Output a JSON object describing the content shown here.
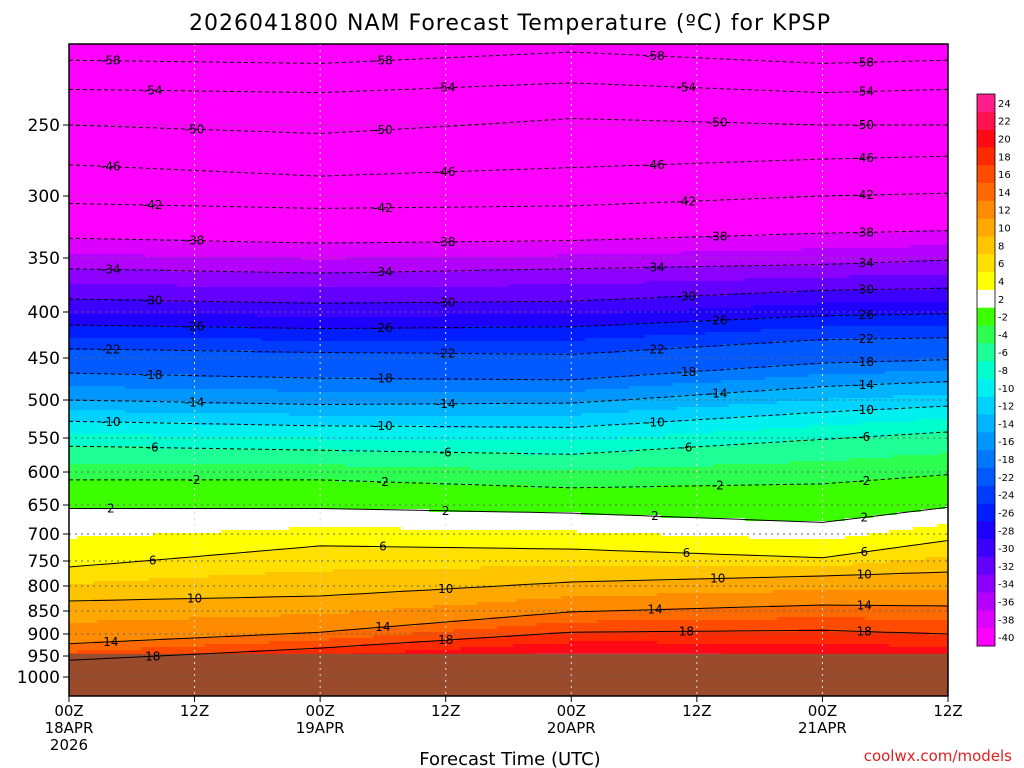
{
  "chart_data": {
    "type": "heatmap",
    "title": "2026041800 NAM Forecast Temperature (ºC) for KPSP",
    "xlabel": "Forecast Time (UTC)",
    "ylabel": "",
    "credit": "coolwx.com/models",
    "x_axis": {
      "range_hours": [
        0,
        84
      ],
      "ticks": [
        {
          "hour": 0,
          "lines": [
            "00Z",
            "18APR",
            "2026"
          ]
        },
        {
          "hour": 12,
          "lines": [
            "12Z"
          ]
        },
        {
          "hour": 24,
          "lines": [
            "00Z",
            "19APR"
          ]
        },
        {
          "hour": 36,
          "lines": [
            "12Z"
          ]
        },
        {
          "hour": 48,
          "lines": [
            "00Z",
            "20APR"
          ]
        },
        {
          "hour": 60,
          "lines": [
            "12Z"
          ]
        },
        {
          "hour": 72,
          "lines": [
            "00Z",
            "21APR"
          ]
        },
        {
          "hour": 84,
          "lines": [
            "12Z"
          ]
        }
      ]
    },
    "y_axis": {
      "units": "hPa",
      "scale": "log",
      "range": [
        1050,
        200
      ],
      "ticks": [
        250,
        300,
        350,
        400,
        450,
        500,
        550,
        600,
        650,
        700,
        750,
        800,
        850,
        900,
        950,
        1000
      ]
    },
    "ground_level_hpa": 945,
    "grid": "dotted",
    "colorbar": {
      "placement": "right",
      "labels": [
        "24",
        "22",
        "20",
        "18",
        "16",
        "14",
        "12",
        "10",
        "8",
        "6",
        "4",
        "2",
        "-2",
        "-4",
        "-6",
        "-8",
        "-10",
        "-12",
        "-14",
        "-16",
        "-18",
        "-22",
        "-24",
        "-26",
        "-28",
        "-30",
        "-32",
        "-34",
        "-36",
        "-38",
        "-40"
      ],
      "colors": [
        "#ff1e8c",
        "#ff1450",
        "#ff0a14",
        "#ff2a00",
        "#ff4c00",
        "#ff6a00",
        "#ff8c00",
        "#ffa800",
        "#ffc400",
        "#ffe000",
        "#ffff00",
        "#ffffff",
        "#3cff00",
        "#2cff50",
        "#1eff96",
        "#00ffcc",
        "#00f0f0",
        "#00d2ff",
        "#00b4ff",
        "#0096ff",
        "#0078ff",
        "#005aff",
        "#003cff",
        "#001eff",
        "#1e00ff",
        "#3c00ff",
        "#6400ff",
        "#8c00ff",
        "#b400ff",
        "#dc00ff",
        "#ff00ff"
      ]
    },
    "color_levels_c": [
      -40,
      -38,
      -36,
      -34,
      -32,
      -30,
      -28,
      -26,
      -24,
      -22,
      -18,
      -16,
      -14,
      -12,
      -10,
      -8,
      -6,
      -4,
      -2,
      2,
      4,
      6,
      8,
      10,
      12,
      14,
      16,
      18,
      20,
      22,
      24
    ],
    "contour_labels": [
      "-58",
      "-54",
      "-50",
      "-46",
      "-42",
      "-38",
      "-34",
      "-30",
      "-26",
      "-22",
      "-18",
      "-14",
      "-10",
      "-6",
      "-2",
      "2",
      "6",
      "10",
      "14",
      "18"
    ],
    "contours": [
      {
        "temp_c": -58,
        "hours": [
          0,
          24,
          48,
          72,
          84
        ],
        "p_hpa": [
          210,
          212,
          205,
          212,
          210
        ]
      },
      {
        "temp_c": -54,
        "hours": [
          0,
          24,
          48,
          72,
          84
        ],
        "p_hpa": [
          228,
          230,
          224,
          230,
          228
        ]
      },
      {
        "temp_c": -50,
        "hours": [
          0,
          24,
          48,
          72,
          84
        ],
        "p_hpa": [
          250,
          256,
          246,
          250,
          250
        ]
      },
      {
        "temp_c": -46,
        "hours": [
          0,
          24,
          48,
          72,
          84
        ],
        "p_hpa": [
          278,
          286,
          280,
          274,
          272
        ]
      },
      {
        "temp_c": -42,
        "hours": [
          0,
          24,
          48,
          72,
          84
        ],
        "p_hpa": [
          306,
          310,
          308,
          300,
          298
        ]
      },
      {
        "temp_c": -38,
        "hours": [
          0,
          24,
          48,
          72,
          84
        ],
        "p_hpa": [
          334,
          338,
          336,
          330,
          328
        ]
      },
      {
        "temp_c": -34,
        "hours": [
          0,
          24,
          48,
          72,
          84
        ],
        "p_hpa": [
          360,
          364,
          360,
          356,
          352
        ]
      },
      {
        "temp_c": -30,
        "hours": [
          0,
          24,
          48,
          72,
          84
        ],
        "p_hpa": [
          388,
          392,
          390,
          380,
          378
        ]
      },
      {
        "temp_c": -26,
        "hours": [
          0,
          24,
          48,
          72,
          84
        ],
        "p_hpa": [
          414,
          418,
          416,
          404,
          402
        ]
      },
      {
        "temp_c": -22,
        "hours": [
          0,
          24,
          48,
          72,
          84
        ],
        "p_hpa": [
          440,
          444,
          446,
          430,
          428
        ]
      },
      {
        "temp_c": -18,
        "hours": [
          0,
          24,
          48,
          72,
          84
        ],
        "p_hpa": [
          468,
          474,
          476,
          456,
          452
        ]
      },
      {
        "temp_c": -14,
        "hours": [
          0,
          24,
          48,
          72,
          84
        ],
        "p_hpa": [
          500,
          506,
          504,
          484,
          478
        ]
      },
      {
        "temp_c": -10,
        "hours": [
          0,
          24,
          48,
          72,
          84
        ],
        "p_hpa": [
          528,
          534,
          536,
          516,
          508
        ]
      },
      {
        "temp_c": -6,
        "hours": [
          0,
          24,
          48,
          72,
          84
        ],
        "p_hpa": [
          562,
          568,
          574,
          552,
          542
        ]
      },
      {
        "temp_c": -2,
        "hours": [
          0,
          24,
          48,
          72,
          84
        ],
        "p_hpa": [
          612,
          612,
          624,
          618,
          604
        ]
      },
      {
        "temp_c": 2,
        "hours": [
          0,
          24,
          48,
          72,
          84
        ],
        "p_hpa": [
          656,
          656,
          664,
          680,
          654
        ]
      },
      {
        "temp_c": 6,
        "hours": [
          0,
          24,
          48,
          72,
          84
        ],
        "p_hpa": [
          762,
          722,
          728,
          744,
          712
        ]
      },
      {
        "temp_c": 10,
        "hours": [
          0,
          24,
          48,
          72,
          84
        ],
        "p_hpa": [
          830,
          820,
          792,
          780,
          772
        ]
      },
      {
        "temp_c": 14,
        "hours": [
          0,
          24,
          48,
          72,
          84
        ],
        "p_hpa": [
          922,
          896,
          852,
          838,
          840
        ]
      },
      {
        "temp_c": 18,
        "hours": [
          0,
          24,
          48,
          72,
          84
        ],
        "p_hpa": [
          960,
          932,
          896,
          892,
          900
        ]
      }
    ]
  }
}
